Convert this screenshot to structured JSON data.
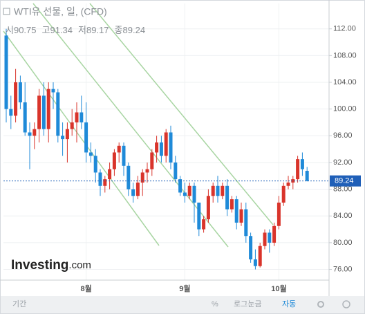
{
  "header": {
    "title": "WTI유 선물, 일, (CFD)",
    "ohlc_labels": [
      "시",
      "고",
      "저",
      "종"
    ]
  },
  "logo": {
    "name": "Investing",
    "suffix": ".com"
  },
  "toolbar": [
    "기간",
    "%",
    "로그눈금",
    "자동"
  ],
  "chart_data": {
    "type": "candlestick",
    "categories": [
      null,
      null,
      null,
      null,
      null,
      null,
      null,
      null,
      null,
      null,
      null,
      null,
      null,
      null,
      null,
      null,
      null,
      "8월",
      null,
      null,
      null,
      null,
      null,
      null,
      null,
      null,
      null,
      null,
      null,
      null,
      null,
      null,
      null,
      null,
      null,
      null,
      null,
      null,
      "9월",
      null,
      null,
      null,
      null,
      null,
      null,
      null,
      null,
      null,
      null,
      null,
      null,
      null,
      null,
      null,
      null,
      null,
      null,
      null,
      "10월",
      null,
      null,
      null,
      null,
      null,
      null
    ],
    "open": [
      111,
      100,
      99,
      104,
      101,
      96.5,
      96,
      97,
      102,
      97,
      103,
      102.5,
      96,
      95.5,
      97,
      98,
      99.5,
      98,
      93.5,
      93,
      90.5,
      88.5,
      89.5,
      91,
      93.5,
      94.5,
      91.5,
      88,
      87,
      89,
      90.5,
      91,
      93.5,
      95,
      93,
      96.5,
      92,
      89.5,
      87.5,
      87,
      88.5,
      86,
      82,
      83.5,
      87,
      88.5,
      87,
      88.5,
      85,
      86.5,
      83,
      85,
      81,
      77.5,
      76.5,
      79.5,
      81.5,
      80,
      82.5,
      86,
      88.5,
      89,
      89.5,
      92.5,
      90.75
    ],
    "high": [
      112,
      102,
      106,
      105,
      104,
      98,
      98,
      103,
      104,
      104,
      104,
      103,
      98,
      98,
      100,
      101,
      102,
      101,
      95,
      94,
      91,
      90,
      92,
      94,
      95,
      95,
      92,
      89,
      90,
      91,
      92,
      94,
      96,
      96,
      97,
      97.5,
      93,
      90,
      89,
      89,
      89,
      86,
      84,
      88,
      89,
      90,
      89,
      89.5,
      87,
      87,
      86,
      86,
      81.5,
      79,
      80,
      82,
      82,
      83,
      87,
      89,
      90,
      90,
      93,
      93.5,
      91.34
    ],
    "low": [
      98,
      97,
      98,
      100,
      96,
      91,
      94,
      95,
      96,
      95,
      100,
      95,
      93,
      92,
      96,
      95,
      97,
      92,
      92,
      89,
      87,
      87.5,
      88,
      90,
      92,
      90,
      87,
      86,
      86.5,
      87,
      89,
      90,
      92,
      92,
      92,
      91,
      89,
      87,
      86,
      86.5,
      83,
      81,
      81.5,
      83,
      86,
      86,
      86.5,
      84,
      84.5,
      82,
      82.5,
      80,
      77,
      76,
      76.3,
      79,
      78.5,
      79.5,
      82,
      85.5,
      88,
      88,
      89,
      90,
      89.17
    ],
    "close": [
      100,
      99,
      104,
      101,
      96.5,
      96,
      97,
      102,
      97,
      103,
      102.5,
      96,
      95.5,
      97,
      98,
      99.5,
      98,
      93.5,
      93,
      90.5,
      88.5,
      89.5,
      91,
      93.5,
      94.5,
      91.5,
      88,
      87,
      89,
      90.5,
      91,
      93.5,
      95,
      93,
      96.5,
      92,
      89.5,
      87.5,
      87,
      88.5,
      86,
      82,
      83.5,
      87,
      88.5,
      87,
      88.5,
      85,
      86.5,
      83,
      85,
      81,
      77.5,
      76.5,
      79.5,
      81.5,
      80,
      82.5,
      86,
      88.5,
      89,
      89.5,
      92.5,
      91,
      89.24
    ],
    "up_color": "#d9342b",
    "down_color": "#1f8ad8",
    "ylim": [
      74.4,
      115.8
    ],
    "yticks": [
      {
        "value": 76,
        "label": "76.00"
      },
      {
        "value": 80,
        "label": "80.00"
      },
      {
        "value": 84,
        "label": "84.00"
      },
      {
        "value": 88,
        "label": "88.00"
      },
      {
        "value": 92,
        "label": "92.00"
      },
      {
        "value": 96,
        "label": "96.00"
      },
      {
        "value": 100,
        "label": "100.00"
      },
      {
        "value": 104,
        "label": "104.00"
      },
      {
        "value": 108,
        "label": "108.00"
      },
      {
        "value": 112,
        "label": "112.00"
      }
    ],
    "grid": true
  }
}
